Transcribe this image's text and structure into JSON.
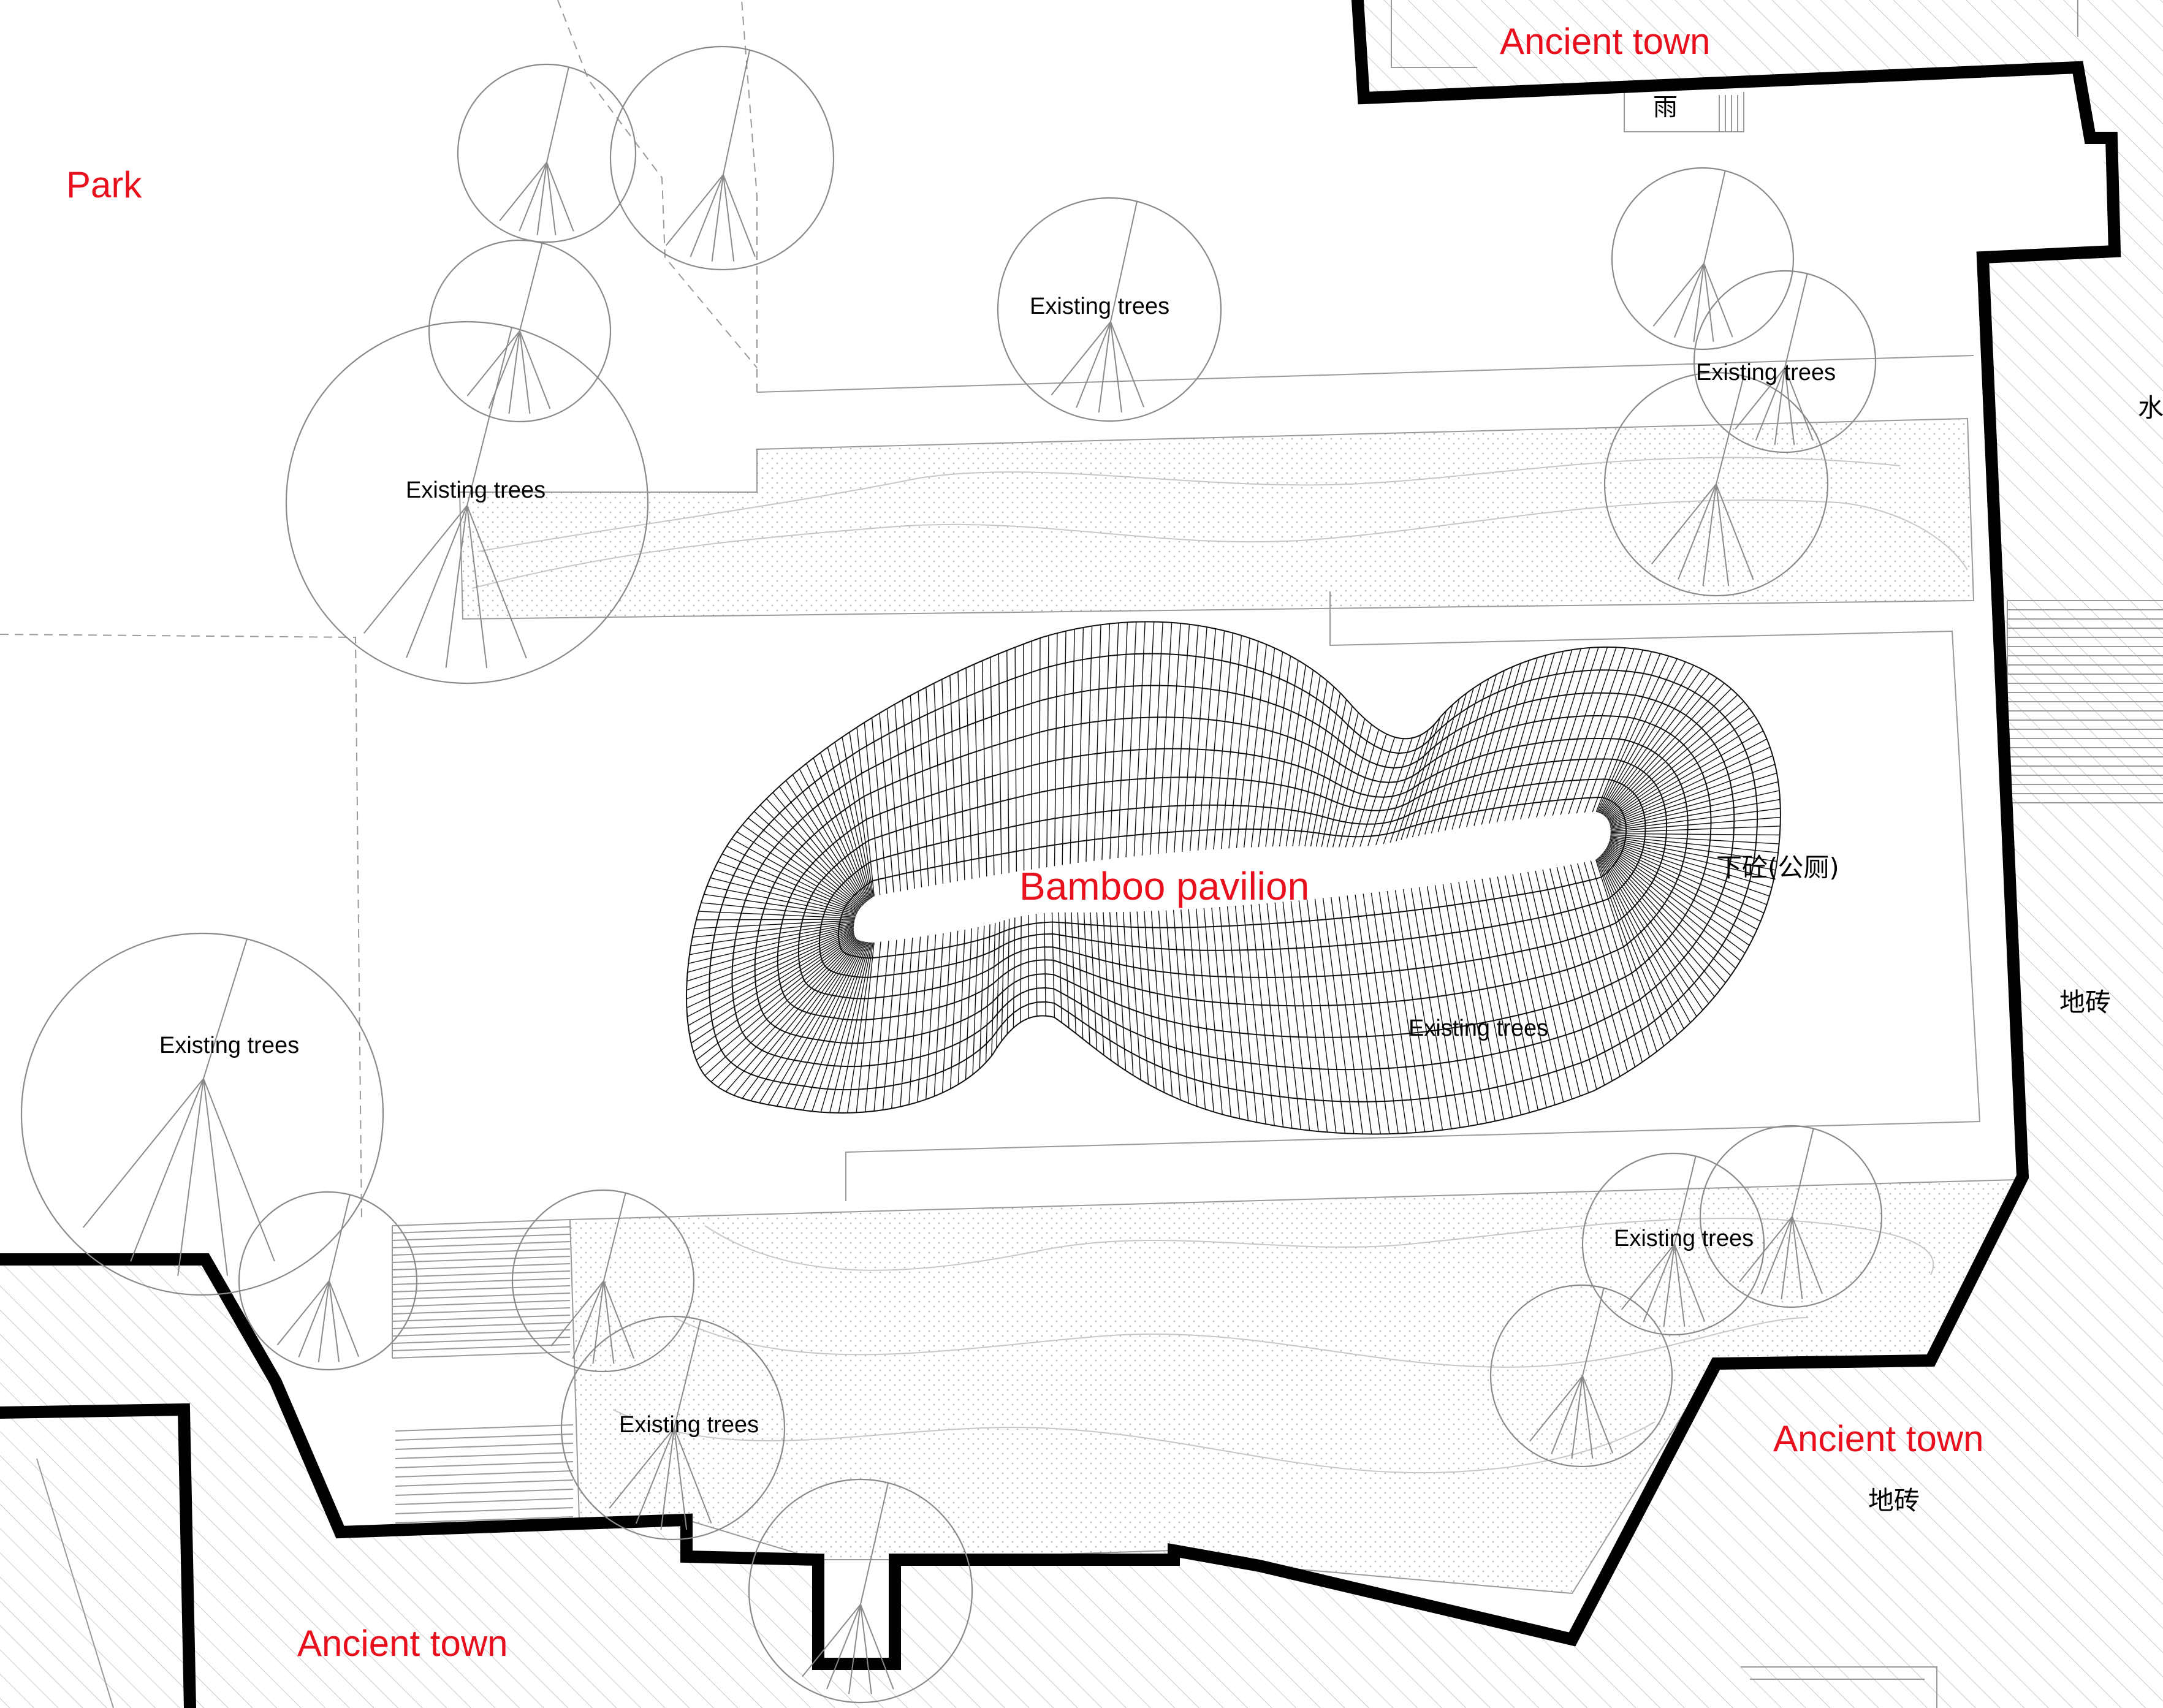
{
  "labels": {
    "park": "Park",
    "ancient_town_top": "Ancient town",
    "ancient_town_right": "Ancient town",
    "ancient_town_bottom": "Ancient town",
    "bamboo_pavilion": "Bamboo pavilion",
    "toilet_note": "下砼(公厕)",
    "floor_tile_right": "地砖",
    "floor_tile_bottom": "地砖",
    "water_mark": "水",
    "rain_mark": "雨"
  },
  "tree_labels": {
    "t1": "Existing trees",
    "t2": "Existing trees",
    "t3": "Existing trees",
    "t4": "Existing trees",
    "t5": "Existing trees",
    "t6": "Existing trees",
    "t7": "Existing trees"
  },
  "colors": {
    "label_red": "#e8101c",
    "wall": "#000000",
    "hatch": "#c9c9c9",
    "dot": "#b5b5b5",
    "thin_line": "#9a9a9a"
  }
}
